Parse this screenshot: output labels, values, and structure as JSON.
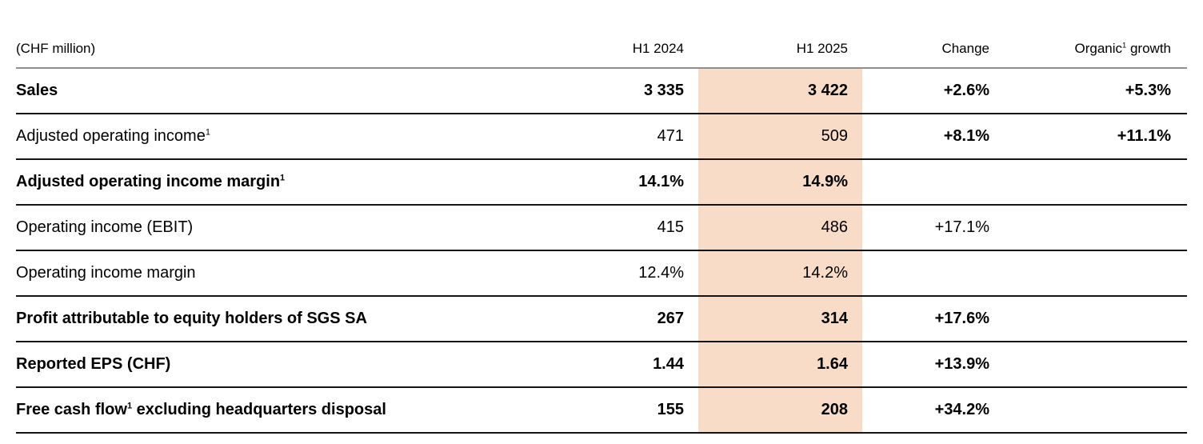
{
  "colors": {
    "highlight_bg": "#f9dcc7",
    "row_line": "#141414",
    "header_line": "#8e8e8e",
    "text": "#000000"
  },
  "table": {
    "unit_label": "(CHF million)",
    "headers": {
      "h1_2024": "H1 2024",
      "h1_2025": "H1 2025",
      "change": "Change",
      "organic_pre": "Organic",
      "organic_sup": "1",
      "organic_post": " growth"
    },
    "rows": [
      {
        "label_pre": "Sales",
        "label_sup": "",
        "label_post": "",
        "h1_2024": "3 335",
        "h1_2025": "3 422",
        "change": "+2.6%",
        "organic": "+5.3%",
        "label_bold": true,
        "values_bold": true,
        "change_bold": true
      },
      {
        "label_pre": "Adjusted operating income",
        "label_sup": "1",
        "label_post": "",
        "h1_2024": "471",
        "h1_2025": "509",
        "change": "+8.1%",
        "organic": "+11.1%",
        "label_bold": false,
        "values_bold": false,
        "change_bold": true
      },
      {
        "label_pre": "Adjusted operating income margin",
        "label_sup": "1",
        "label_post": "",
        "h1_2024": "14.1%",
        "h1_2025": "14.9%",
        "change": "",
        "organic": "",
        "label_bold": true,
        "values_bold": true,
        "change_bold": false
      },
      {
        "label_pre": "Operating income (EBIT)",
        "label_sup": "",
        "label_post": "",
        "h1_2024": "415",
        "h1_2025": "486",
        "change": "+17.1%",
        "organic": "",
        "label_bold": false,
        "values_bold": false,
        "change_bold": false
      },
      {
        "label_pre": "Operating income margin",
        "label_sup": "",
        "label_post": "",
        "h1_2024": "12.4%",
        "h1_2025": "14.2%",
        "change": "",
        "organic": "",
        "label_bold": false,
        "values_bold": false,
        "change_bold": false
      },
      {
        "label_pre": "Profit attributable to equity holders of SGS SA",
        "label_sup": "",
        "label_post": "",
        "h1_2024": "267",
        "h1_2025": "314",
        "change": "+17.6%",
        "organic": "",
        "label_bold": true,
        "values_bold": true,
        "change_bold": true
      },
      {
        "label_pre": "Reported EPS (CHF)",
        "label_sup": "",
        "label_post": "",
        "h1_2024": "1.44",
        "h1_2025": "1.64",
        "change": "+13.9%",
        "organic": "",
        "label_bold": true,
        "values_bold": true,
        "change_bold": true
      },
      {
        "label_pre": "Free cash flow",
        "label_sup": "1",
        "label_post": " excluding headquarters disposal",
        "h1_2024": "155",
        "h1_2025": "208",
        "change": "+34.2%",
        "organic": "",
        "label_bold": true,
        "values_bold": true,
        "change_bold": true
      }
    ]
  }
}
